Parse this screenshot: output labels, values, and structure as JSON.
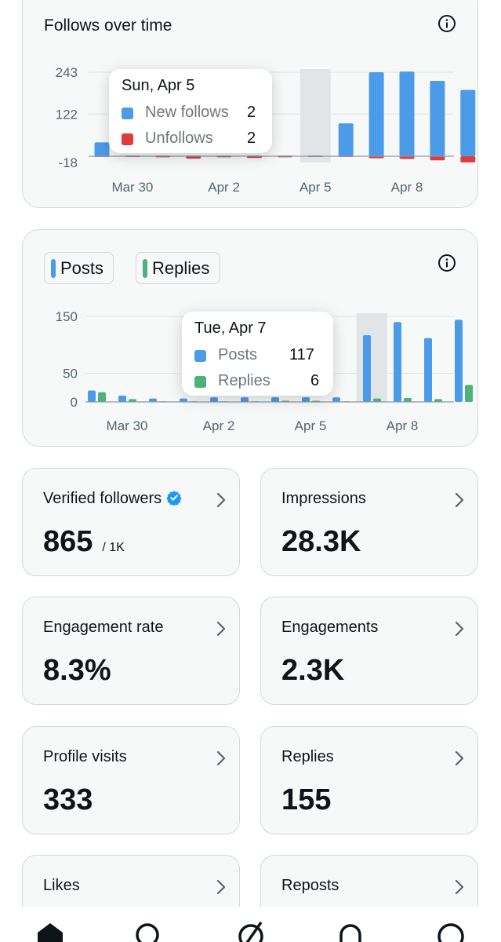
{
  "follows_card": {
    "title": "Follows over time",
    "info_icon": "info-icon",
    "tooltip": {
      "title": "Sun, Apr 5",
      "rows": [
        {
          "name": "New follows",
          "value": "2",
          "color": "#4c9be8"
        },
        {
          "name": "Unfollows",
          "value": "2",
          "color": "#e03c3c"
        }
      ]
    }
  },
  "posts_card": {
    "legend": [
      {
        "label": "Posts",
        "color": "#4c9be8"
      },
      {
        "label": "Replies",
        "color": "#4cb27a"
      }
    ],
    "info_icon": "info-icon",
    "tooltip": {
      "title": "Tue, Apr 7",
      "rows": [
        {
          "name": "Posts",
          "value": "117",
          "color": "#4c9be8"
        },
        {
          "name": "Replies",
          "value": "6",
          "color": "#4cb27a"
        }
      ]
    }
  },
  "chart_data": [
    {
      "type": "bar",
      "categories": [
        "Mar 29",
        "Mar 30",
        "Mar 31",
        "Apr 1",
        "Apr 2",
        "Apr 3",
        "Apr 4",
        "Apr 5",
        "Apr 6",
        "Apr 7",
        "Apr 8",
        "Apr 9",
        "Apr 10"
      ],
      "x_tick_labels": [
        "Mar 30",
        "Apr 2",
        "Apr 5",
        "Apr 8"
      ],
      "y_tick_labels": [
        "243",
        "122",
        "-18"
      ],
      "ylim": [
        -18,
        243
      ],
      "highlighted": "Apr 5",
      "series": [
        {
          "name": "New follows",
          "color": "#4c9be8",
          "values": [
            40,
            2,
            2,
            2,
            2,
            2,
            2,
            2,
            95,
            243,
            245,
            218,
            192
          ]
        },
        {
          "name": "Unfollows",
          "color": "#e03c3c",
          "values": [
            -2,
            -2,
            -3,
            -7,
            -3,
            -5,
            -3,
            -2,
            -2,
            -6,
            -8,
            -12,
            -18
          ]
        }
      ]
    },
    {
      "type": "bar",
      "categories": [
        "Mar 29",
        "Mar 30",
        "Mar 31",
        "Apr 1",
        "Apr 2",
        "Apr 3",
        "Apr 4",
        "Apr 5",
        "Apr 6",
        "Apr 7",
        "Apr 8",
        "Apr 9",
        "Apr 10"
      ],
      "x_tick_labels": [
        "Mar 30",
        "Apr 2",
        "Apr 5",
        "Apr 8"
      ],
      "y_tick_labels": [
        "150",
        "50",
        "0"
      ],
      "ylim": [
        0,
        150
      ],
      "highlighted": "Apr 7",
      "series": [
        {
          "name": "Posts",
          "color": "#4c9be8",
          "values": [
            20,
            11,
            6,
            6,
            8,
            8,
            8,
            8,
            8,
            117,
            140,
            112,
            144
          ]
        },
        {
          "name": "Replies",
          "color": "#4cb27a",
          "values": [
            17,
            5,
            1,
            1,
            1,
            1,
            2,
            2,
            1,
            6,
            7,
            5,
            30
          ]
        }
      ]
    }
  ],
  "metrics": [
    {
      "label": "Verified followers",
      "value": "865",
      "sub": "/ 1K",
      "verified": true
    },
    {
      "label": "Impressions",
      "value": "28.3K",
      "sub": ""
    },
    {
      "label": "Engagement rate",
      "value": "8.3%",
      "sub": ""
    },
    {
      "label": "Engagements",
      "value": "2.3K",
      "sub": ""
    },
    {
      "label": "Profile visits",
      "value": "333",
      "sub": ""
    },
    {
      "label": "Replies",
      "value": "155",
      "sub": ""
    },
    {
      "label": "Likes",
      "value": "",
      "sub": ""
    },
    {
      "label": "Reposts",
      "value": "",
      "sub": ""
    }
  ],
  "bottom_nav": [
    "home-icon",
    "search-icon",
    "grok-icon",
    "notifications-icon",
    "profile-icon"
  ]
}
